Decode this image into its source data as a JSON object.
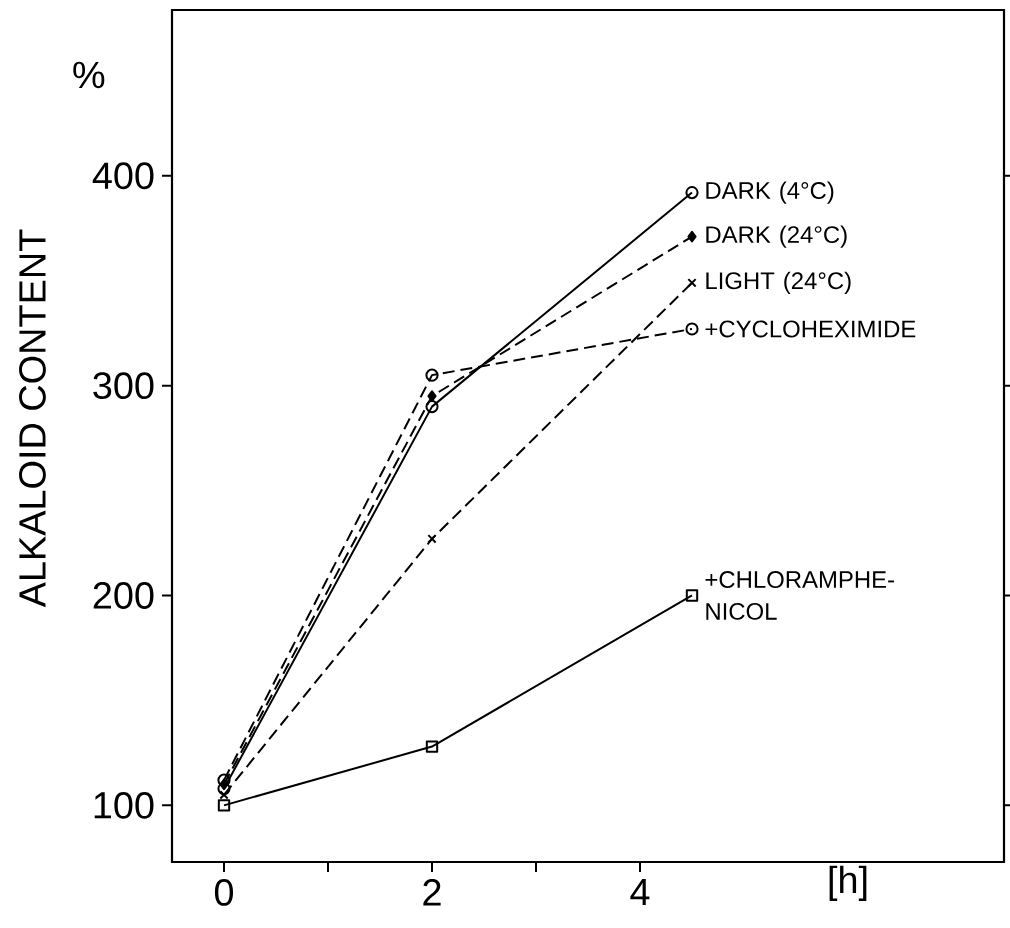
{
  "chart_data": {
    "type": "line",
    "xlabel": "[h]",
    "ylabel": "ALKALOID CONTENT",
    "annotations": [
      "%"
    ],
    "x": [
      0,
      2,
      4.5
    ],
    "xlim": [
      -0.5,
      7.5
    ],
    "ylim": [
      73,
      479
    ],
    "xticks": [
      0,
      {
        "value": 1,
        "label": null
      },
      2,
      {
        "value": 3,
        "label": null
      },
      4
    ],
    "yticks": [
      100,
      200,
      300,
      400
    ],
    "legend": false,
    "grid": false,
    "series": [
      {
        "name": "DARK (4°C)",
        "color": "#000000",
        "values": [
          108,
          290,
          392
        ],
        "marker": "circle",
        "line_style": "solid"
      },
      {
        "name": "DARK (24°C)",
        "color": "#000000",
        "values": [
          110,
          295,
          371
        ],
        "marker": "diamond",
        "line_style": "dashed"
      },
      {
        "name": "LIGHT (24°C)",
        "color": "#000000",
        "values": [
          105,
          227,
          349
        ],
        "marker": "cross",
        "line_style": "dashed"
      },
      {
        "name": "+CYCLOHEXIMIDE",
        "color": "#000000",
        "values": [
          112,
          305,
          327
        ],
        "marker": "circle",
        "line_style": "dashed"
      },
      {
        "name": "+CHLORAMPHE- NICOL",
        "color": "#000000",
        "values": [
          100,
          128,
          200
        ],
        "marker": "square",
        "line_style": "solid"
      }
    ]
  }
}
